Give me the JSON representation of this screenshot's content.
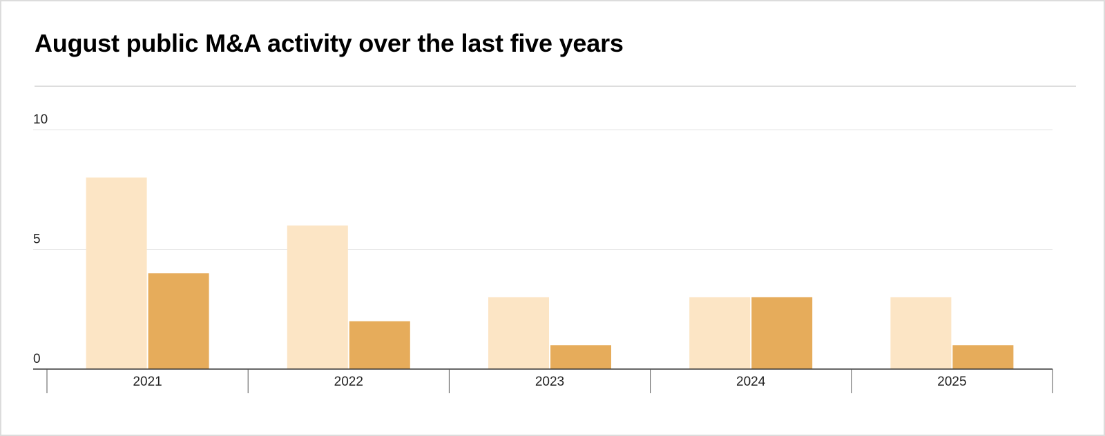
{
  "title": "August public M&A activity over the last five years",
  "chart_data": {
    "type": "bar",
    "categories": [
      "2021",
      "2022",
      "2023",
      "2024",
      "2025"
    ],
    "series": [
      {
        "values": [
          8,
          6,
          3,
          3,
          3
        ],
        "color": "#fce5c5"
      },
      {
        "values": [
          4,
          2,
          1,
          3,
          1
        ],
        "color": "#e6ac5b"
      }
    ],
    "ylim": [
      0,
      10
    ],
    "yticks": [
      0,
      5,
      10
    ],
    "grid": true,
    "legend": "none",
    "colors": {
      "gridline": "#e6e6e6",
      "axis": "#333333"
    }
  }
}
